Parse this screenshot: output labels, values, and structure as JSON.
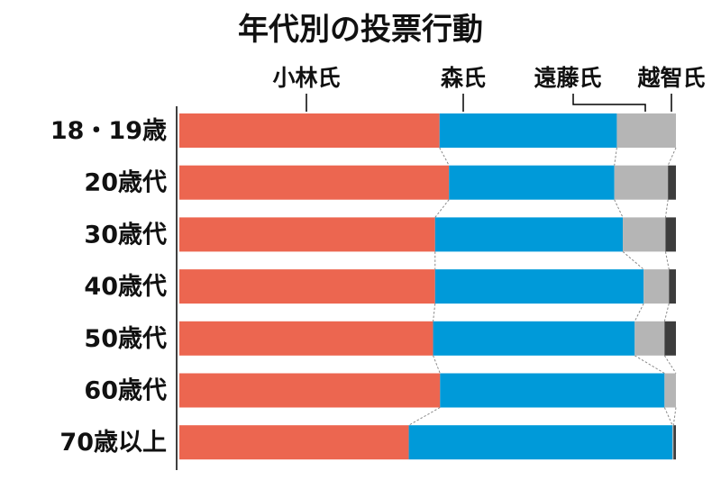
{
  "chart_data": {
    "type": "bar",
    "orientation": "horizontal",
    "stacked": true,
    "percent_stacked": true,
    "title": "年代別の投票行動",
    "categories": [
      "18・19歳",
      "20歳代",
      "30歳代",
      "40歳代",
      "50歳代",
      "60歳代",
      "70歳以上"
    ],
    "series": [
      {
        "name": "小林氏",
        "color": "#ec6650",
        "values": [
          52.4,
          54.3,
          51.5,
          51.5,
          51.1,
          52.5,
          46.2
        ]
      },
      {
        "name": "森氏",
        "color": "#009ad9",
        "values": [
          35.7,
          33.3,
          37.8,
          42.0,
          40.6,
          45.2,
          53.1
        ]
      },
      {
        "name": "遠藤氏",
        "color": "#b5b5b5",
        "values": [
          11.9,
          10.8,
          8.6,
          5.1,
          6.0,
          2.3,
          0.2
        ]
      },
      {
        "name": "越智氏",
        "color": "#3d3d3d",
        "values": [
          0.0,
          1.6,
          2.1,
          1.4,
          2.3,
          0.0,
          0.5
        ]
      }
    ],
    "legend_placement": "top, as leader-line labels",
    "connector_lines": "dashed lines linking segment boundaries between bars",
    "grid": false
  }
}
